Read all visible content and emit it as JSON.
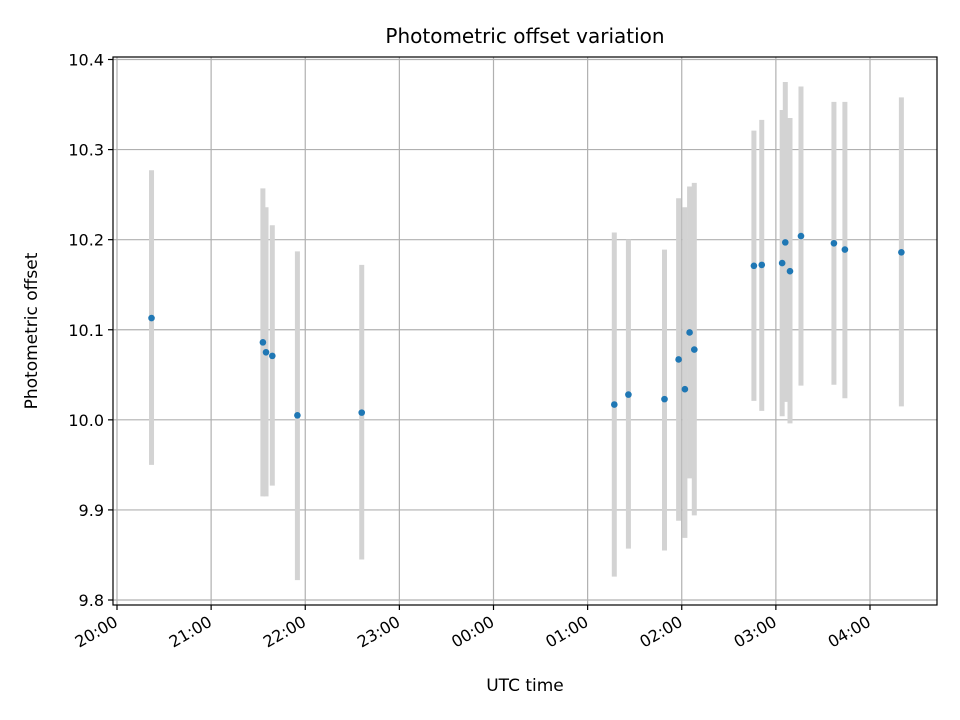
{
  "chart_data": {
    "type": "scatter",
    "title": "Photometric offset variation",
    "xlabel": "UTC time",
    "ylabel": "Photometric offset",
    "x_axis": {
      "kind": "time",
      "range": [
        "20:00",
        "04:45"
      ],
      "ticks": [
        "20:00",
        "21:00",
        "22:00",
        "23:00",
        "00:00",
        "01:00",
        "02:00",
        "03:00",
        "04:00"
      ]
    },
    "y_axis": {
      "range": [
        9.795,
        10.403
      ],
      "ticks": [
        9.8,
        9.9,
        10.0,
        10.1,
        10.2,
        10.3,
        10.4
      ],
      "tick_labels": [
        "9.8",
        "9.9",
        "10.0",
        "10.1",
        "10.2",
        "10.3",
        "10.4"
      ]
    },
    "grid": true,
    "marker_color": "#1f77b4",
    "errorbar_color": "#d3d3d3",
    "points": [
      {
        "t": "20:22",
        "y": 10.113,
        "ylo": 9.95,
        "yhi": 10.277
      },
      {
        "t": "21:33",
        "y": 10.086,
        "ylo": 9.915,
        "yhi": 10.257
      },
      {
        "t": "21:35",
        "y": 10.075,
        "ylo": 9.915,
        "yhi": 10.236
      },
      {
        "t": "21:39",
        "y": 10.071,
        "ylo": 9.927,
        "yhi": 10.216
      },
      {
        "t": "21:55",
        "y": 10.005,
        "ylo": 9.822,
        "yhi": 10.187
      },
      {
        "t": "22:36",
        "y": 10.008,
        "ylo": 9.845,
        "yhi": 10.172
      },
      {
        "t": "01:17",
        "y": 10.017,
        "ylo": 9.826,
        "yhi": 10.208
      },
      {
        "t": "01:26",
        "y": 10.028,
        "ylo": 9.857,
        "yhi": 10.2
      },
      {
        "t": "01:49",
        "y": 10.023,
        "ylo": 9.855,
        "yhi": 10.189
      },
      {
        "t": "01:58",
        "y": 10.067,
        "ylo": 9.888,
        "yhi": 10.246
      },
      {
        "t": "02:02",
        "y": 10.034,
        "ylo": 9.869,
        "yhi": 10.236
      },
      {
        "t": "02:05",
        "y": 10.097,
        "ylo": 9.935,
        "yhi": 10.259
      },
      {
        "t": "02:08",
        "y": 10.078,
        "ylo": 9.894,
        "yhi": 10.263
      },
      {
        "t": "02:46",
        "y": 10.171,
        "ylo": 10.021,
        "yhi": 10.321
      },
      {
        "t": "02:51",
        "y": 10.172,
        "ylo": 10.01,
        "yhi": 10.333
      },
      {
        "t": "03:04",
        "y": 10.174,
        "ylo": 10.004,
        "yhi": 10.344
      },
      {
        "t": "03:06",
        "y": 10.197,
        "ylo": 10.02,
        "yhi": 10.375
      },
      {
        "t": "03:09",
        "y": 10.165,
        "ylo": 9.996,
        "yhi": 10.335
      },
      {
        "t": "03:16",
        "y": 10.204,
        "ylo": 10.038,
        "yhi": 10.37
      },
      {
        "t": "03:37",
        "y": 10.196,
        "ylo": 10.039,
        "yhi": 10.353
      },
      {
        "t": "03:44",
        "y": 10.189,
        "ylo": 10.024,
        "yhi": 10.353
      },
      {
        "t": "04:20",
        "y": 10.186,
        "ylo": 10.015,
        "yhi": 10.358
      }
    ]
  }
}
